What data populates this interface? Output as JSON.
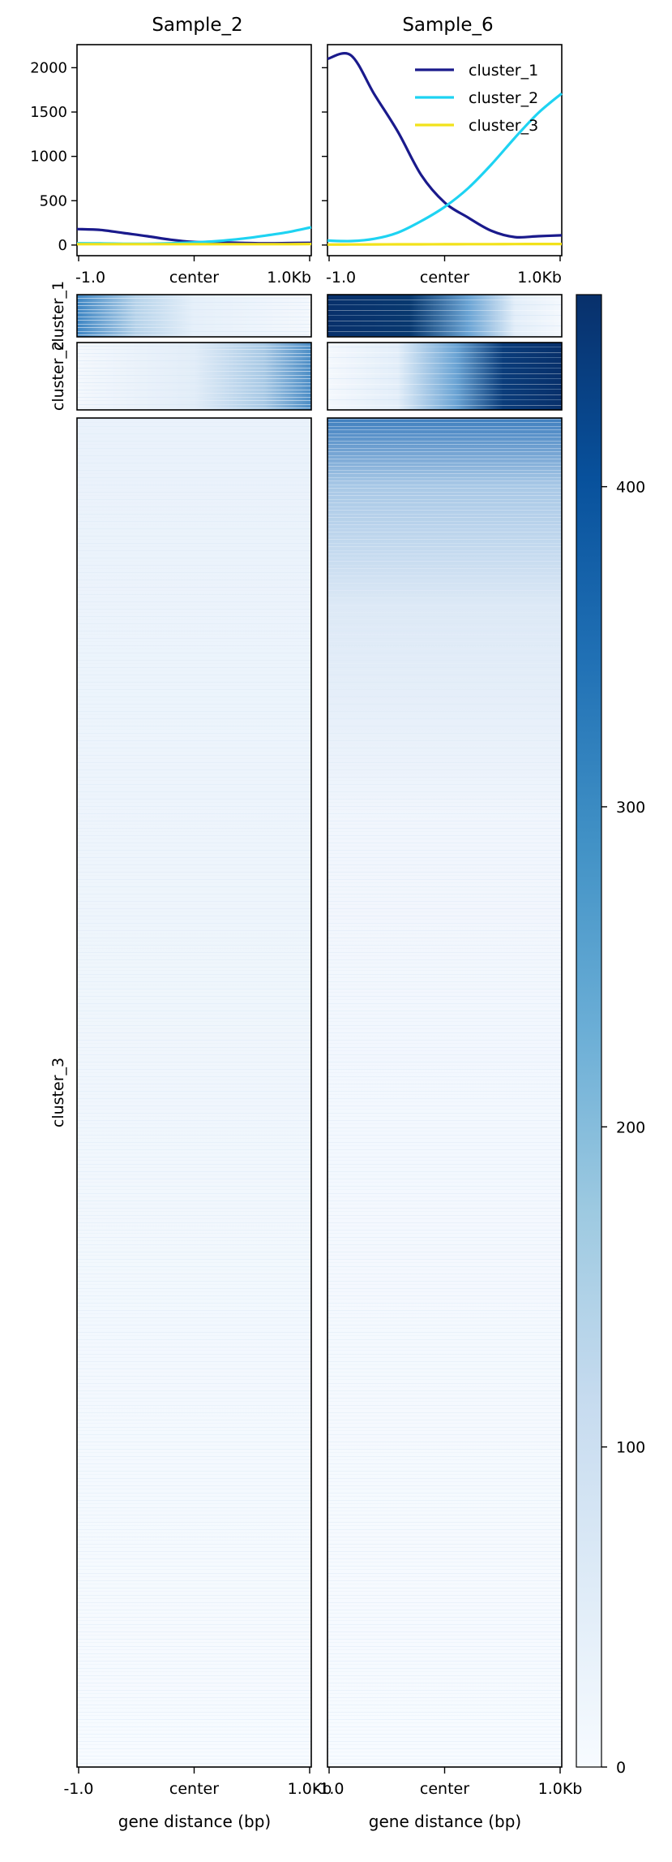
{
  "chart_data": [
    {
      "type": "line",
      "panel": "profile",
      "samples": [
        "Sample_2",
        "Sample_6"
      ],
      "x_ticks": [
        "-1.0",
        "center",
        "1.0Kb"
      ],
      "y_ticks": [
        "0",
        "500",
        "1000",
        "1500",
        "2000"
      ],
      "ylim": [
        -120,
        2260
      ],
      "legend": {
        "position": "top-right",
        "entries": [
          "cluster_1",
          "cluster_2",
          "cluster_3"
        ]
      },
      "colors": {
        "cluster_1": "#1a1a8c",
        "cluster_2": "#1ed3f2",
        "cluster_3": "#f2e21a"
      },
      "x": [
        0,
        0.1,
        0.2,
        0.3,
        0.4,
        0.5,
        0.6,
        0.7,
        0.8,
        0.9,
        1.0
      ],
      "series": [
        {
          "sample": "Sample_2",
          "name": "cluster_1",
          "values": [
            180,
            170,
            135,
            100,
            60,
            35,
            30,
            25,
            20,
            22,
            25
          ]
        },
        {
          "sample": "Sample_2",
          "name": "cluster_2",
          "values": [
            20,
            18,
            15,
            15,
            20,
            30,
            45,
            70,
            105,
            145,
            200
          ]
        },
        {
          "sample": "Sample_2",
          "name": "cluster_3",
          "values": [
            10,
            10,
            10,
            10,
            10,
            10,
            10,
            10,
            10,
            10,
            12
          ]
        },
        {
          "sample": "Sample_6",
          "name": "cluster_1",
          "values": [
            2100,
            2140,
            1700,
            1280,
            790,
            480,
            310,
            160,
            90,
            100,
            110
          ]
        },
        {
          "sample": "Sample_6",
          "name": "cluster_2",
          "values": [
            50,
            45,
            70,
            140,
            270,
            430,
            640,
            910,
            1210,
            1490,
            1710
          ]
        },
        {
          "sample": "Sample_6",
          "name": "cluster_3",
          "values": [
            5,
            6,
            7,
            8,
            8,
            9,
            10,
            10,
            11,
            12,
            12
          ]
        }
      ]
    },
    {
      "type": "heatmap",
      "panel": "heatmap",
      "xlabel": "gene distance (bp)",
      "x_ticks": [
        "-1.0",
        "center",
        "1.0Kb"
      ],
      "row_groups": [
        "cluster_1",
        "cluster_2",
        "cluster_3"
      ],
      "colorbar": {
        "ticks": [
          "0",
          "100",
          "200",
          "300",
          "400"
        ],
        "vmin": 0,
        "vmax": 460,
        "low_color": "#f7fbff",
        "high_color": "#08306b"
      }
    }
  ]
}
